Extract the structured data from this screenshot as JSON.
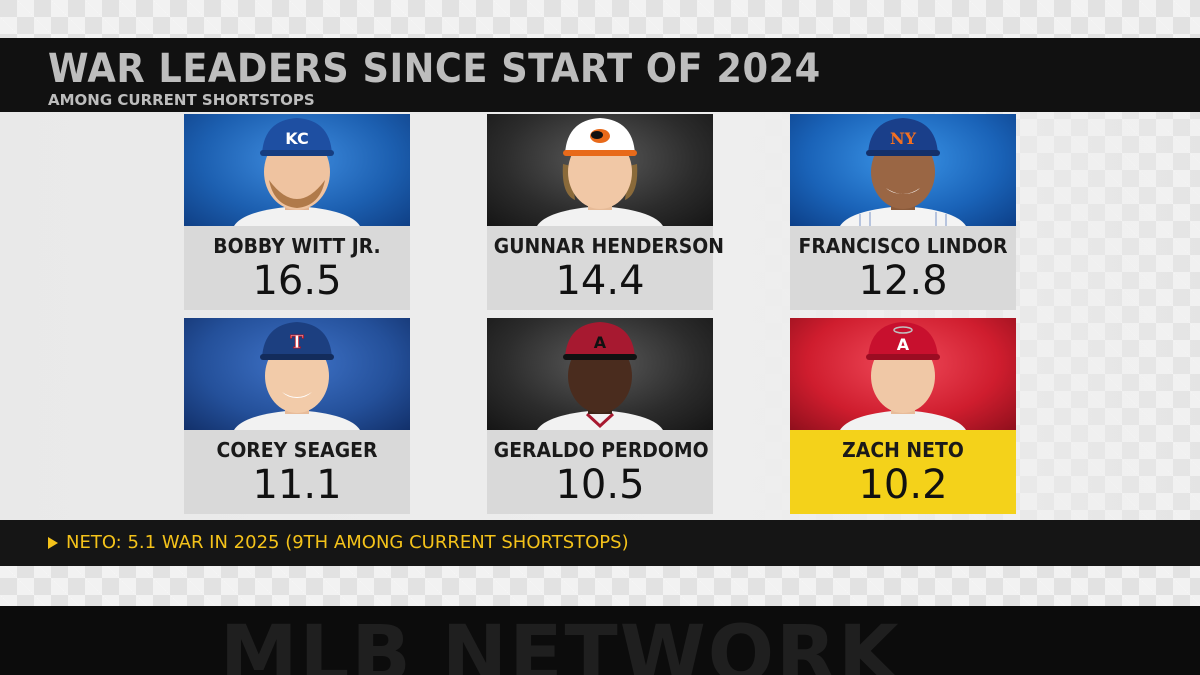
{
  "header": {
    "title": "WAR LEADERS SINCE START OF 2024",
    "subtitle": "AMONG CURRENT SHORTSTOPS"
  },
  "players": [
    {
      "name": "BOBBY WITT JR.",
      "war": "16.5",
      "cap_logo": "KC",
      "team_color": "#1c5fb0",
      "highlight": false
    },
    {
      "name": "GUNNAR HENDERSON",
      "war": "14.4",
      "cap_logo": "oriole-bird",
      "team_color": "#2c2c2c",
      "highlight": false
    },
    {
      "name": "FRANCISCO LINDOR",
      "war": "12.8",
      "cap_logo": "NY",
      "team_color": "#1a63b8",
      "highlight": false
    },
    {
      "name": "COREY SEAGER",
      "war": "11.1",
      "cap_logo": "T",
      "team_color": "#24509a",
      "highlight": false
    },
    {
      "name": "GERALDO PERDOMO",
      "war": "10.5",
      "cap_logo": "A",
      "team_color": "#2c2c2c",
      "highlight": false
    },
    {
      "name": "ZACH NETO",
      "war": "10.2",
      "cap_logo": "A",
      "team_color": "#cf1d2e",
      "highlight": true
    }
  ],
  "note": {
    "icon": "play-triangle-icon",
    "text": "NETO: 5.1 WAR IN 2025 (9TH AMONG CURRENT SHORTSTOPS)"
  },
  "footer": {
    "watermark": "MLB NETWORK"
  },
  "colors": {
    "accent_yellow": "#f4d21a",
    "note_text": "#f4c21a",
    "header_bg": "#111111"
  }
}
